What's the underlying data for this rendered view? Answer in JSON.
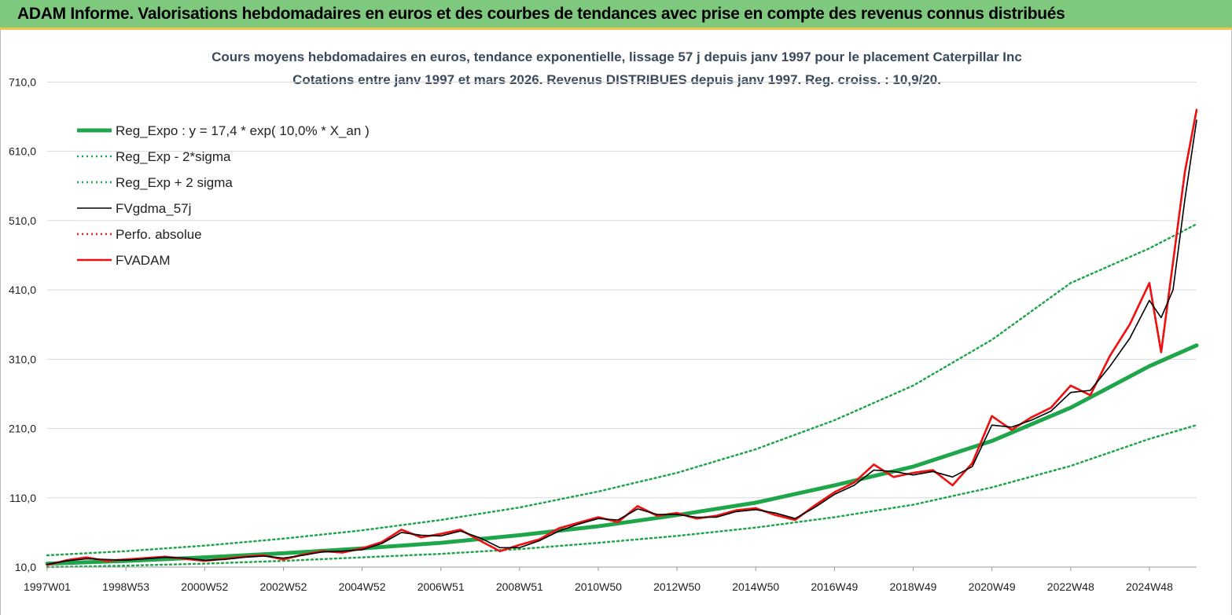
{
  "header": {
    "title": "ADAM Informe. Valorisations hebdomadaires en euros et des courbes de tendances avec prise en compte des revenus connus distribués"
  },
  "chart_data": {
    "type": "line",
    "title": "Cours moyens hebdomadaires en euros, tendance exponentielle, lissage 57 j depuis janv 1997 pour le placement Caterpillar Inc",
    "subtitle": "Cotations entre janv 1997 et mars 2026. Revenus DISTRIBUES depuis janv 1997. Reg. croiss. : 10,9/20.",
    "xlabel": "",
    "ylabel": "",
    "x_range": [
      1997.0,
      2026.2
    ],
    "ylim": [
      10,
      740
    ],
    "yticks": [
      10,
      110,
      210,
      310,
      410,
      510,
      610,
      710
    ],
    "ytick_labels": [
      "10,0",
      "110,0",
      "210,0",
      "310,0",
      "410,0",
      "510,0",
      "610,0",
      "710,0"
    ],
    "xtick_labels": [
      "1997W01",
      "1998W53",
      "2000W52",
      "2002W52",
      "2004W52",
      "2006W51",
      "2008W51",
      "2010W50",
      "2012W50",
      "2014W50",
      "2016W49",
      "2018W49",
      "2020W49",
      "2022W48",
      "2024W48"
    ],
    "xtick_years": [
      1997.0,
      1999.0,
      2001.0,
      2003.0,
      2005.0,
      2007.0,
      2009.0,
      2011.0,
      2013.0,
      2015.0,
      2017.0,
      2019.0,
      2021.0,
      2023.0,
      2025.0
    ],
    "grid": "horizontal",
    "legend_position": "top-left",
    "series": [
      {
        "name": "Reg_Expo : y = 17,4 * exp( 10,0% *  X_an )",
        "color": "#1fa64a",
        "style": "solid-thick",
        "x": [
          1997.0,
          1999.0,
          2001.0,
          2003.0,
          2005.0,
          2007.0,
          2009.0,
          2011.0,
          2013.0,
          2015.0,
          2017.0,
          2019.0,
          2021.0,
          2023.0,
          2025.0,
          2026.2
        ],
        "values": [
          15,
          19,
          24,
          30,
          37,
          45,
          56,
          69,
          85,
          103,
          128,
          155,
          192,
          240,
          300,
          330
        ]
      },
      {
        "name": "Reg_Exp - 2*sigma",
        "color": "#1fa64a",
        "style": "dotted",
        "x": [
          1997.0,
          1999.0,
          2001.0,
          2003.0,
          2005.0,
          2007.0,
          2009.0,
          2011.0,
          2013.0,
          2015.0,
          2017.0,
          2019.0,
          2021.0,
          2023.0,
          2025.0,
          2026.2
        ],
        "values": [
          10,
          12,
          15,
          19,
          24,
          29,
          36,
          45,
          55,
          67,
          82,
          100,
          125,
          156,
          195,
          215
        ]
      },
      {
        "name": "Reg_Exp + 2 sigma",
        "color": "#1fa64a",
        "style": "dotted",
        "x": [
          1997.0,
          1999.0,
          2001.0,
          2003.0,
          2005.0,
          2007.0,
          2009.0,
          2011.0,
          2013.0,
          2015.0,
          2017.0,
          2019.0,
          2021.0,
          2023.0,
          2025.0,
          2026.2
        ],
        "values": [
          27,
          33,
          41,
          51,
          63,
          78,
          96,
          119,
          146,
          180,
          222,
          272,
          338,
          420,
          470,
          505
        ]
      },
      {
        "name": "FVgdma_57j",
        "color": "#000000",
        "style": "solid",
        "x": [
          1997.0,
          1997.5,
          1998.0,
          1998.5,
          1999.0,
          1999.5,
          2000.0,
          2000.5,
          2001.0,
          2001.5,
          2002.0,
          2002.5,
          2003.0,
          2003.5,
          2004.0,
          2004.5,
          2005.0,
          2005.5,
          2006.0,
          2006.5,
          2007.0,
          2007.5,
          2008.0,
          2008.5,
          2009.0,
          2009.5,
          2010.0,
          2010.5,
          2011.0,
          2011.5,
          2012.0,
          2012.5,
          2013.0,
          2013.5,
          2014.0,
          2014.5,
          2015.0,
          2015.5,
          2016.0,
          2016.5,
          2017.0,
          2017.5,
          2018.0,
          2018.5,
          2019.0,
          2019.5,
          2020.0,
          2020.5,
          2021.0,
          2021.5,
          2022.0,
          2022.5,
          2023.0,
          2023.5,
          2024.0,
          2024.5,
          2025.0,
          2025.3,
          2025.6,
          2025.9,
          2026.2
        ],
        "values": [
          14,
          19,
          22,
          21,
          20,
          22,
          24,
          23,
          20,
          21,
          24,
          26,
          23,
          27,
          32,
          33,
          35,
          44,
          60,
          56,
          55,
          62,
          52,
          38,
          38,
          48,
          62,
          72,
          80,
          78,
          94,
          86,
          86,
          82,
          82,
          90,
          93,
          88,
          80,
          96,
          115,
          128,
          150,
          148,
          143,
          148,
          140,
          155,
          215,
          212,
          222,
          235,
          262,
          265,
          300,
          340,
          395,
          370,
          410,
          540,
          655
        ]
      },
      {
        "name": "Perfo. absolue",
        "color": "#d9251c",
        "style": "dotted",
        "x": [
          1997.0,
          1997.5,
          1998.0,
          1998.5,
          1999.0,
          1999.5,
          2000.0,
          2000.5,
          2001.0,
          2001.5,
          2002.0,
          2002.5,
          2003.0,
          2003.5,
          2004.0,
          2004.5,
          2005.0,
          2005.5,
          2006.0,
          2006.5,
          2007.0,
          2007.5,
          2008.0,
          2008.5,
          2009.0,
          2009.5,
          2010.0,
          2010.5,
          2011.0,
          2011.5,
          2012.0,
          2012.5,
          2013.0,
          2013.5,
          2014.0,
          2014.5,
          2015.0,
          2015.5,
          2016.0,
          2016.5,
          2017.0,
          2017.5,
          2018.0,
          2018.5,
          2019.0,
          2019.5,
          2020.0,
          2020.5,
          2021.0,
          2021.5,
          2022.0,
          2022.5,
          2023.0,
          2023.5,
          2024.0,
          2024.5,
          2025.0,
          2025.3,
          2025.6,
          2025.9,
          2026.2
        ],
        "values": [
          13,
          20,
          24,
          19,
          21,
          23,
          25,
          22,
          19,
          22,
          25,
          27,
          21,
          28,
          33,
          31,
          37,
          46,
          64,
          53,
          58,
          64,
          48,
          33,
          42,
          50,
          66,
          74,
          82,
          75,
          98,
          84,
          88,
          80,
          84,
          92,
          95,
          85,
          78,
          99,
          118,
          132,
          158,
          140,
          146,
          150,
          128,
          160,
          228,
          208,
          226,
          240,
          272,
          258,
          315,
          360,
          420,
          320,
          450,
          580,
          670
        ]
      },
      {
        "name": "FVADAM",
        "color": "#ee1111",
        "style": "solid-thick",
        "x": [
          1997.0,
          1997.5,
          1998.0,
          1998.5,
          1999.0,
          1999.5,
          2000.0,
          2000.5,
          2001.0,
          2001.5,
          2002.0,
          2002.5,
          2003.0,
          2003.5,
          2004.0,
          2004.5,
          2005.0,
          2005.5,
          2006.0,
          2006.5,
          2007.0,
          2007.5,
          2008.0,
          2008.5,
          2009.0,
          2009.5,
          2010.0,
          2010.5,
          2011.0,
          2011.5,
          2012.0,
          2012.5,
          2013.0,
          2013.5,
          2014.0,
          2014.5,
          2015.0,
          2015.5,
          2016.0,
          2016.5,
          2017.0,
          2017.5,
          2018.0,
          2018.5,
          2019.0,
          2019.5,
          2020.0,
          2020.5,
          2021.0,
          2021.5,
          2022.0,
          2022.5,
          2023.0,
          2023.5,
          2024.0,
          2024.5,
          2025.0,
          2025.3,
          2025.6,
          2025.9,
          2026.2
        ],
        "values": [
          13,
          20,
          24,
          19,
          21,
          23,
          25,
          22,
          19,
          22,
          25,
          27,
          21,
          28,
          33,
          31,
          37,
          46,
          64,
          53,
          58,
          64,
          48,
          33,
          42,
          50,
          66,
          74,
          82,
          75,
          98,
          84,
          88,
          80,
          84,
          92,
          95,
          85,
          78,
          99,
          118,
          132,
          158,
          140,
          146,
          150,
          128,
          160,
          228,
          208,
          226,
          240,
          272,
          258,
          315,
          360,
          420,
          320,
          450,
          580,
          670
        ]
      }
    ]
  }
}
